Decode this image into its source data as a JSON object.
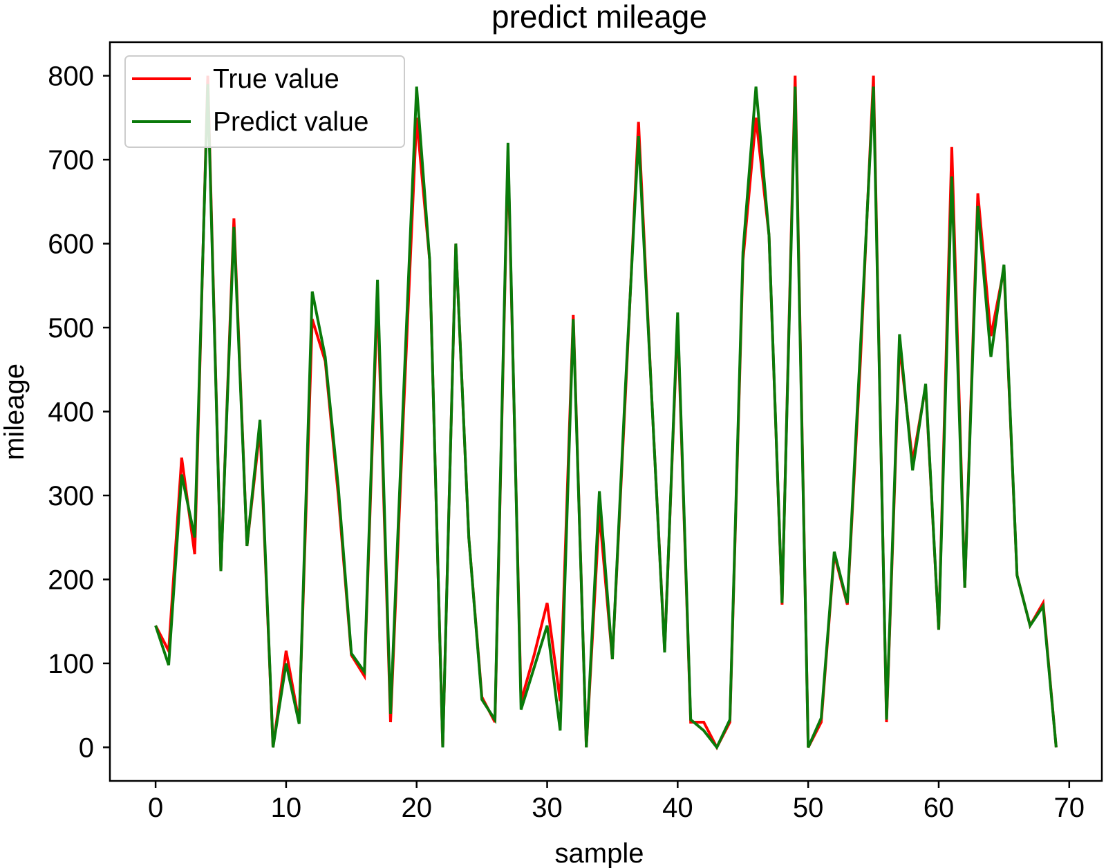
{
  "chart_data": {
    "type": "line",
    "title": "predict mileage",
    "xlabel": "sample",
    "ylabel": "mileage",
    "xlim": [
      -3.5,
      72.5
    ],
    "ylim": [
      -40,
      840
    ],
    "xticks": [
      0,
      10,
      20,
      30,
      40,
      50,
      60,
      70
    ],
    "yticks": [
      0,
      100,
      200,
      300,
      400,
      500,
      600,
      700,
      800
    ],
    "grid": false,
    "legend_position": "top-left",
    "x": [
      0,
      1,
      2,
      3,
      4,
      5,
      6,
      7,
      8,
      9,
      10,
      11,
      12,
      13,
      14,
      15,
      16,
      17,
      18,
      19,
      20,
      21,
      22,
      23,
      24,
      25,
      26,
      27,
      28,
      29,
      30,
      31,
      32,
      33,
      34,
      35,
      36,
      37,
      38,
      39,
      40,
      41,
      42,
      43,
      44,
      45,
      46,
      47,
      48,
      49,
      50,
      51,
      52,
      53,
      54,
      55,
      56,
      57,
      58,
      59,
      60,
      61,
      62,
      63,
      64,
      65,
      66,
      67,
      68,
      69
    ],
    "series": [
      {
        "name": "True value",
        "color": "#ff0000",
        "values": [
          145,
          115,
          345,
          230,
          800,
          210,
          630,
          240,
          380,
          0,
          115,
          30,
          510,
          460,
          300,
          110,
          85,
          540,
          30,
          400,
          750,
          580,
          0,
          600,
          250,
          60,
          30,
          710,
          55,
          110,
          172,
          55,
          515,
          0,
          280,
          105,
          420,
          745,
          420,
          115,
          510,
          30,
          30,
          0,
          30,
          580,
          750,
          610,
          170,
          800,
          0,
          30,
          230,
          170,
          460,
          800,
          30,
          480,
          340,
          430,
          140,
          715,
          190,
          660,
          490,
          570,
          205,
          145,
          172,
          0
        ]
      },
      {
        "name": "Predict value",
        "color": "#0a7a0a",
        "values": [
          145,
          98,
          325,
          250,
          790,
          210,
          620,
          240,
          390,
          0,
          100,
          28,
          543,
          465,
          310,
          112,
          90,
          557,
          40,
          420,
          787,
          580,
          0,
          600,
          250,
          57,
          33,
          720,
          45,
          95,
          145,
          20,
          510,
          0,
          305,
          105,
          430,
          728,
          420,
          113,
          518,
          33,
          20,
          0,
          33,
          590,
          787,
          610,
          172,
          787,
          0,
          35,
          233,
          172,
          475,
          787,
          33,
          492,
          330,
          433,
          140,
          680,
          190,
          645,
          465,
          575,
          205,
          145,
          168,
          0
        ]
      }
    ]
  }
}
